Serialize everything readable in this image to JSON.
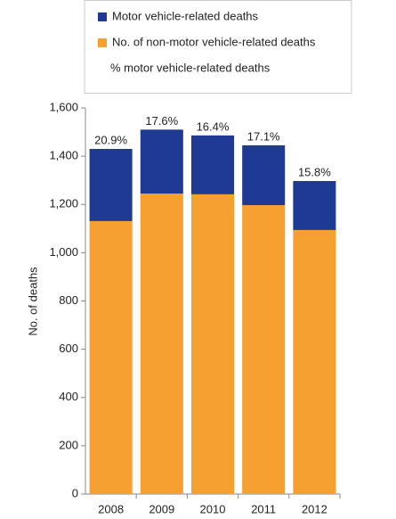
{
  "chart_data": {
    "type": "stacked-bar",
    "y_label": "No. of deaths",
    "categories": [
      "2008",
      "2009",
      "2010",
      "2011",
      "2012"
    ],
    "series": [
      {
        "name": "Motor vehicle-related deaths",
        "color": "#1f3a93",
        "values": [
          299,
          265,
          244,
          248,
          203
        ]
      },
      {
        "name": "No. of non-motor vehicle-related deaths",
        "color": "#f5a031",
        "values": [
          1131,
          1245,
          1242,
          1197,
          1094
        ]
      },
      {
        "name": "% motor vehicle-related deaths",
        "values": [
          20.9,
          17.6,
          16.4,
          17.1,
          15.8
        ],
        "value_labels": [
          "20.9%",
          "17.6%",
          "16.4%",
          "17.1%",
          "15.8%"
        ]
      }
    ],
    "ylim": [
      0,
      1600
    ],
    "yticks": [
      0,
      200,
      400,
      600,
      800,
      {
        "value": 1000,
        "label": "1,000"
      },
      {
        "value": 1200,
        "label": "1,200"
      },
      {
        "value": 1400,
        "label": "1,400"
      },
      {
        "value": 1600,
        "label": "1,600"
      }
    ]
  }
}
